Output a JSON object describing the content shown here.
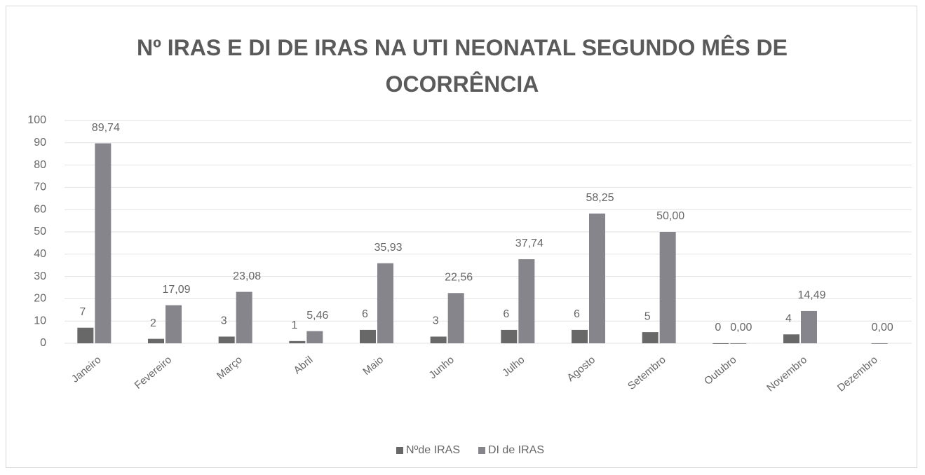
{
  "chart_data": {
    "type": "bar",
    "title": "Nº IRAS E DI DE IRAS NA UTI NEONATAL SEGUNDO MÊS DE OCORRÊNCIA",
    "categories": [
      "Janeiro",
      "Fevereiro",
      "Março",
      "Abril",
      "Maio",
      "Junho",
      "Julho",
      "Agosto",
      "Setembro",
      "Outubro",
      "Novembro",
      "Dezembro"
    ],
    "series": [
      {
        "name": "Nºde IRAS",
        "color": "#686868",
        "values": [
          7,
          2,
          3,
          1,
          6,
          3,
          6,
          6,
          5,
          0,
          4,
          null
        ]
      },
      {
        "name": "DI de IRAS",
        "color": "#85858b",
        "values": [
          89.74,
          17.09,
          23.08,
          5.46,
          35.93,
          22.56,
          37.74,
          58.25,
          50.0,
          0,
          14.49,
          0
        ],
        "value_labels": [
          "89,74",
          "17,09",
          "23,08",
          "5,46",
          "35,93",
          "22,56",
          "37,74",
          "58,25",
          "50,00",
          "0,00",
          "14,49",
          "0,00"
        ]
      }
    ],
    "ylim": [
      0,
      100
    ],
    "yticks": [
      0,
      10,
      20,
      30,
      40,
      50,
      60,
      70,
      80,
      90,
      100
    ],
    "grid": true,
    "legend": "bottom"
  }
}
